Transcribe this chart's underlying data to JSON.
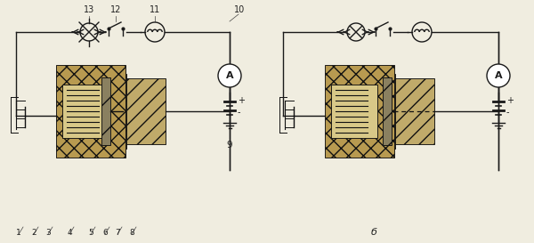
{
  "bg_color": "#f0ede0",
  "line_color": "#1a1a1a",
  "fig_w": 6.0,
  "fig_h": 2.73,
  "dpi": 100,
  "label_b": "б",
  "labels_bottom": [
    "1",
    "2",
    "3",
    "4",
    "5",
    "6",
    "7",
    "8"
  ],
  "labels_top_left": [
    "13",
    "12",
    "11"
  ],
  "label_10": "10",
  "label_9": "9"
}
